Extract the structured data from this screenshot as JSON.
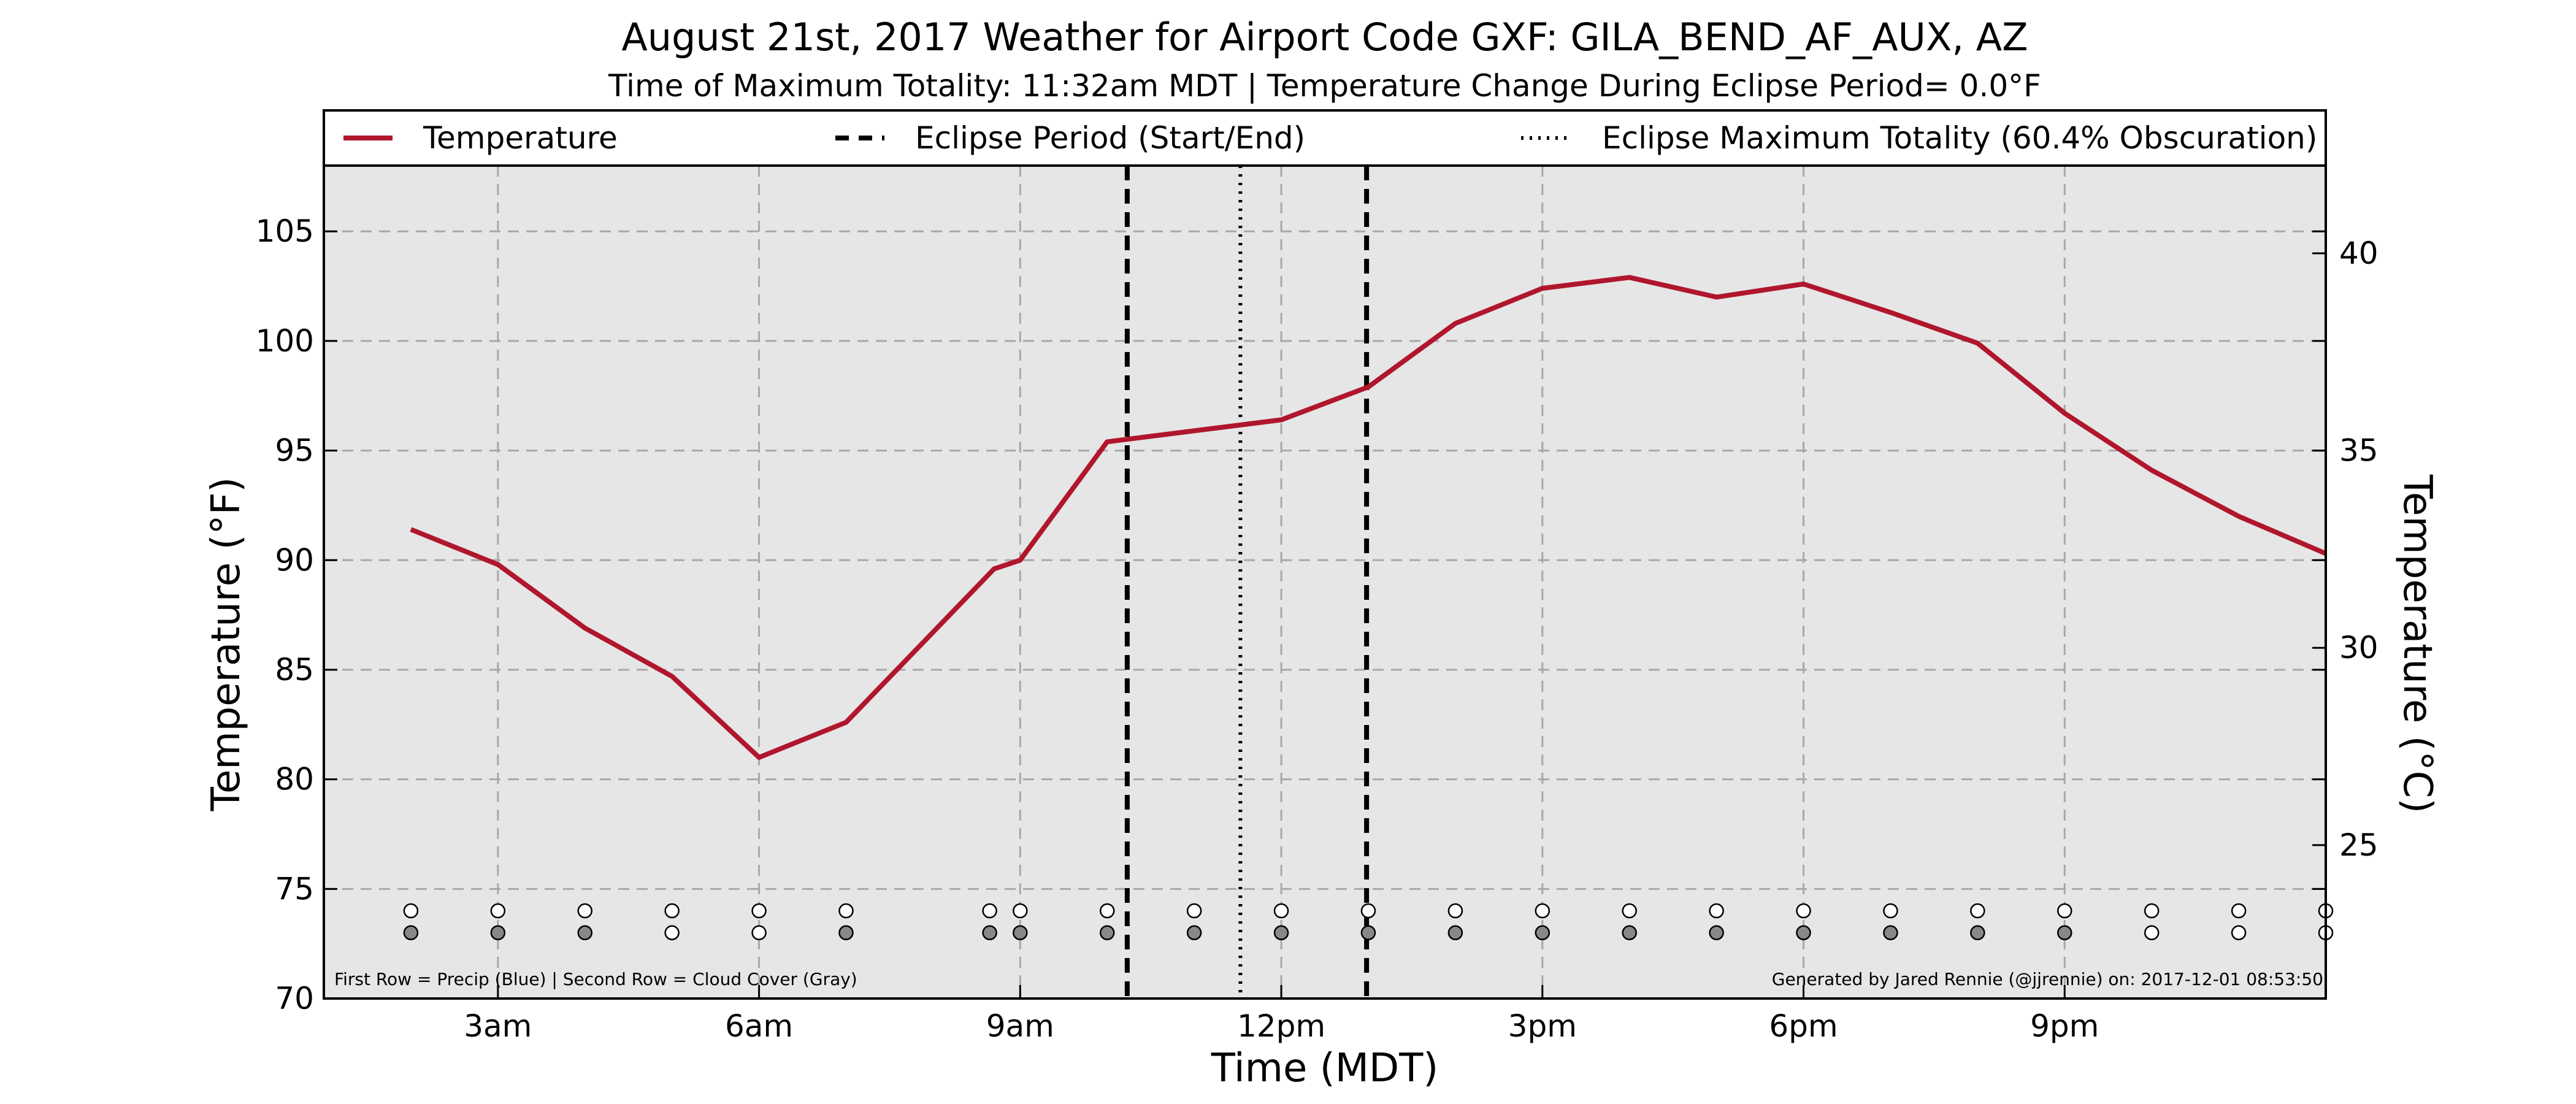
{
  "chart_data": {
    "type": "line",
    "title": "August 21st, 2017 Weather for Airport Code GXF: GILA_BEND_AF_AUX, AZ",
    "subtitle": "Time of Maximum Totality: 11:32am MDT | Temperature Change During Eclipse Period= 0.0°F",
    "xlabel": "Time (MDT)",
    "ylabel": "Temperature (°F)",
    "ylabel_right": "Temperature (°C)",
    "x_unit": "hours after midnight MDT",
    "xlim": [
      1.0,
      24.0
    ],
    "ylim": [
      70,
      108
    ],
    "grid": true,
    "legend_position": "top",
    "x_ticks": [
      {
        "value": 3,
        "label": "3am"
      },
      {
        "value": 6,
        "label": "6am"
      },
      {
        "value": 9,
        "label": "9am"
      },
      {
        "value": 12,
        "label": "12pm"
      },
      {
        "value": 15,
        "label": "3pm"
      },
      {
        "value": 18,
        "label": "6pm"
      },
      {
        "value": 21,
        "label": "9pm"
      }
    ],
    "y_ticks": [
      70,
      75,
      80,
      85,
      90,
      95,
      100,
      105
    ],
    "y_ticks_right": [
      25,
      30,
      35,
      40
    ],
    "series": [
      {
        "name": "Temperature",
        "color": "#b0162d",
        "x": [
          2,
          3,
          4,
          5,
          6,
          7,
          8.7,
          9,
          10,
          11,
          12,
          13,
          14,
          15,
          16,
          17,
          18,
          19,
          20,
          21,
          22,
          23,
          24
        ],
        "y": [
          91.4,
          89.8,
          86.9,
          84.7,
          81.0,
          82.6,
          89.6,
          90.0,
          95.4,
          95.9,
          96.4,
          97.9,
          100.8,
          102.4,
          102.9,
          102.0,
          102.6,
          101.3,
          99.9,
          96.7,
          94.1,
          92.0,
          90.3
        ]
      }
    ],
    "eclipse": {
      "start": 10.23,
      "end": 12.98,
      "max_totality": 11.53,
      "start_end_label": "Eclipse Period (Start/End)",
      "max_label": "Eclipse Maximum Totality (60.4% Obscuration)"
    },
    "observation_markers": {
      "x": [
        2,
        3,
        4,
        5,
        6,
        7,
        8.65,
        9,
        10,
        11,
        12,
        13,
        14,
        15,
        16,
        17,
        18,
        19,
        20,
        21,
        22,
        23,
        24
      ],
      "precip_row_value": 74,
      "cloud_row_value": 73,
      "precip": [
        0,
        0,
        0,
        0,
        0,
        0,
        0,
        0,
        0,
        0,
        0,
        0,
        0,
        0,
        0,
        0,
        0,
        0,
        0,
        0,
        0,
        0,
        0
      ],
      "cloud_cover": [
        1,
        1,
        1,
        0,
        0,
        1,
        1,
        1,
        1,
        1,
        1,
        1,
        1,
        1,
        1,
        1,
        1,
        1,
        1,
        1,
        0,
        0,
        0
      ],
      "precip_color": "#ffffff",
      "cloud_color": "#888888"
    },
    "note_left": "First Row = Precip (Blue) | Second Row = Cloud Cover (Gray)",
    "note_right": "Generated by Jared Rennie (@jjrennie) on: 2017-12-01 08:53:50",
    "plot_background": "#e6e6e6"
  }
}
